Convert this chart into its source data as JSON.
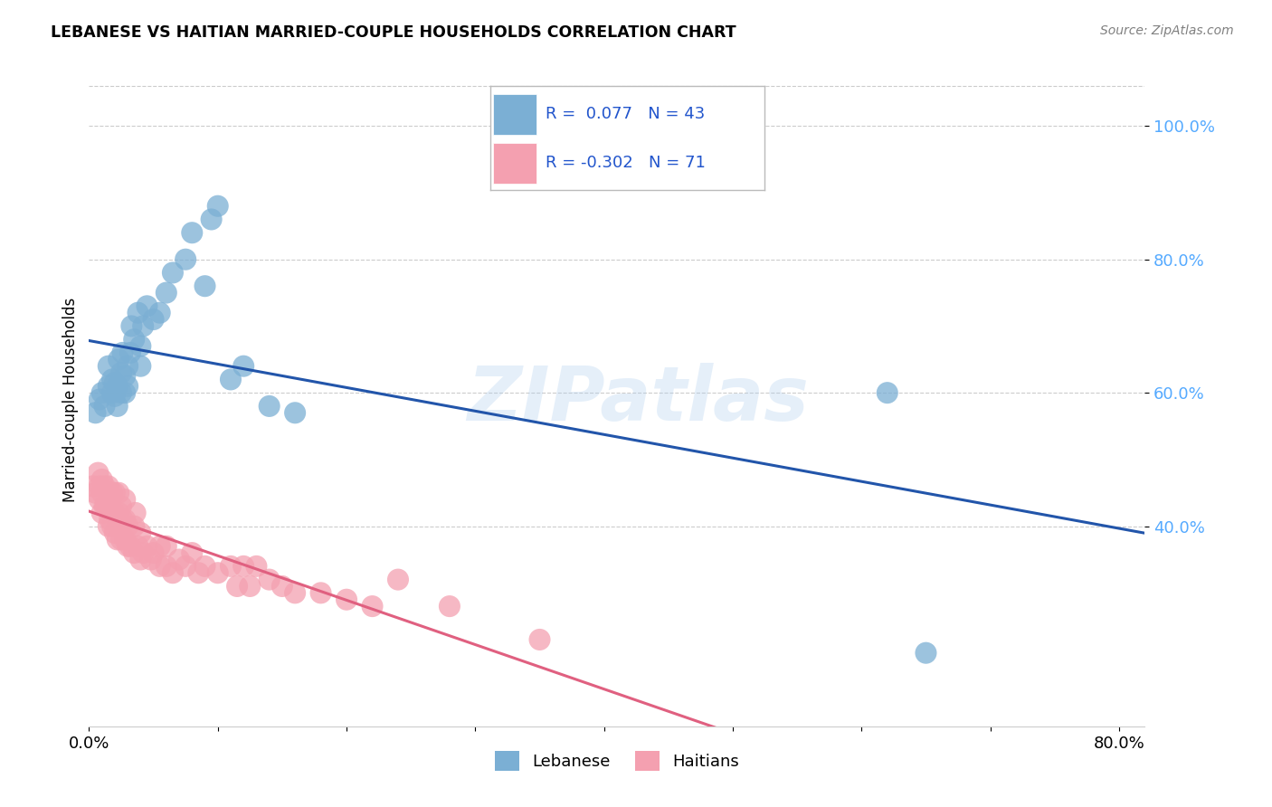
{
  "title": "LEBANESE VS HAITIAN MARRIED-COUPLE HOUSEHOLDS CORRELATION CHART",
  "source": "Source: ZipAtlas.com",
  "ylabel": "Married-couple Households",
  "xlim": [
    0.0,
    0.82
  ],
  "ylim": [
    0.1,
    1.08
  ],
  "yticks": [
    0.4,
    0.6,
    0.8,
    1.0
  ],
  "ytick_labels": [
    "40.0%",
    "60.0%",
    "80.0%",
    "100.0%"
  ],
  "xticks": [
    0.0,
    0.1,
    0.2,
    0.3,
    0.4,
    0.5,
    0.6,
    0.7,
    0.8
  ],
  "xtick_labels": [
    "0.0%",
    "",
    "",
    "",
    "",
    "",
    "",
    "",
    "80.0%"
  ],
  "watermark": "ZIPatlas",
  "legend_blue_label": "Lebanese",
  "legend_pink_label": "Haitians",
  "blue_R": 0.077,
  "blue_N": 43,
  "pink_R": -0.302,
  "pink_N": 71,
  "blue_color": "#7BAFD4",
  "pink_color": "#F4A0B0",
  "blue_line_color": "#2255AA",
  "pink_line_color": "#E06080",
  "tick_color": "#55AAFF",
  "background_color": "#FFFFFF",
  "blue_scatter_x": [
    0.005,
    0.008,
    0.01,
    0.012,
    0.015,
    0.015,
    0.018,
    0.018,
    0.02,
    0.02,
    0.022,
    0.022,
    0.023,
    0.025,
    0.025,
    0.026,
    0.028,
    0.028,
    0.03,
    0.03,
    0.032,
    0.033,
    0.035,
    0.038,
    0.04,
    0.04,
    0.042,
    0.045,
    0.05,
    0.055,
    0.06,
    0.065,
    0.075,
    0.08,
    0.09,
    0.095,
    0.1,
    0.11,
    0.12,
    0.14,
    0.16,
    0.62,
    0.65
  ],
  "blue_scatter_y": [
    0.57,
    0.59,
    0.6,
    0.58,
    0.61,
    0.64,
    0.6,
    0.62,
    0.595,
    0.615,
    0.58,
    0.61,
    0.65,
    0.6,
    0.63,
    0.66,
    0.6,
    0.625,
    0.61,
    0.64,
    0.66,
    0.7,
    0.68,
    0.72,
    0.64,
    0.67,
    0.7,
    0.73,
    0.71,
    0.72,
    0.75,
    0.78,
    0.8,
    0.84,
    0.76,
    0.86,
    0.88,
    0.62,
    0.64,
    0.58,
    0.57,
    0.6,
    0.21
  ],
  "pink_scatter_x": [
    0.003,
    0.005,
    0.007,
    0.008,
    0.008,
    0.01,
    0.01,
    0.01,
    0.012,
    0.012,
    0.013,
    0.015,
    0.015,
    0.015,
    0.016,
    0.016,
    0.018,
    0.018,
    0.018,
    0.02,
    0.02,
    0.02,
    0.022,
    0.022,
    0.023,
    0.023,
    0.025,
    0.025,
    0.025,
    0.026,
    0.028,
    0.028,
    0.028,
    0.03,
    0.03,
    0.032,
    0.035,
    0.035,
    0.036,
    0.038,
    0.04,
    0.04,
    0.042,
    0.045,
    0.048,
    0.05,
    0.055,
    0.055,
    0.06,
    0.06,
    0.065,
    0.07,
    0.075,
    0.08,
    0.085,
    0.09,
    0.1,
    0.11,
    0.115,
    0.12,
    0.125,
    0.13,
    0.14,
    0.15,
    0.16,
    0.18,
    0.2,
    0.22,
    0.24,
    0.28,
    0.35
  ],
  "pink_scatter_y": [
    0.46,
    0.45,
    0.48,
    0.44,
    0.46,
    0.42,
    0.45,
    0.47,
    0.43,
    0.46,
    0.43,
    0.4,
    0.43,
    0.46,
    0.41,
    0.44,
    0.4,
    0.42,
    0.45,
    0.39,
    0.42,
    0.45,
    0.38,
    0.41,
    0.42,
    0.45,
    0.38,
    0.4,
    0.43,
    0.41,
    0.38,
    0.41,
    0.44,
    0.37,
    0.4,
    0.37,
    0.36,
    0.4,
    0.42,
    0.37,
    0.35,
    0.39,
    0.36,
    0.37,
    0.35,
    0.36,
    0.34,
    0.37,
    0.34,
    0.37,
    0.33,
    0.35,
    0.34,
    0.36,
    0.33,
    0.34,
    0.33,
    0.34,
    0.31,
    0.34,
    0.31,
    0.34,
    0.32,
    0.31,
    0.3,
    0.3,
    0.29,
    0.28,
    0.32,
    0.28,
    0.23
  ]
}
